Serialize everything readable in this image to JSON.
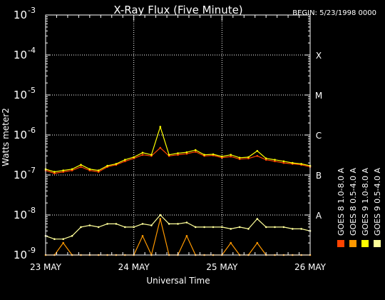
{
  "chart_data": {
    "type": "line",
    "title": "X-Ray Flux (Five Minute)",
    "begin_label": "BEGIN: 5/23/1998 0000",
    "xlabel": "Universal Time",
    "ylabel": "Watts meter2",
    "yscale": "log",
    "ylim": [
      1e-09,
      0.001
    ],
    "xlim": [
      0,
      3
    ],
    "x_unit": "days since 23 May 1998 00:00 UT",
    "x_ticks": [
      {
        "value": 0,
        "label": "23 MAY"
      },
      {
        "value": 1,
        "label": "24 MAY"
      },
      {
        "value": 2,
        "label": "25 MAY"
      },
      {
        "value": 3,
        "label": "26 MAY"
      }
    ],
    "y_ticks": [
      {
        "exp": -9,
        "base": "10",
        "sup": "-9"
      },
      {
        "exp": -8,
        "base": "10",
        "sup": "-8"
      },
      {
        "exp": -7,
        "base": "10",
        "sup": "-7"
      },
      {
        "exp": -6,
        "base": "10",
        "sup": "-6"
      },
      {
        "exp": -5,
        "base": "10",
        "sup": "-5"
      },
      {
        "exp": -4,
        "base": "10",
        "sup": "-4"
      },
      {
        "exp": -3,
        "base": "10",
        "sup": "-3"
      }
    ],
    "flare_classes": [
      {
        "label": "X",
        "exp": -4
      },
      {
        "label": "M",
        "exp": -5
      },
      {
        "label": "C",
        "exp": -6
      },
      {
        "label": "B",
        "exp": -7
      },
      {
        "label": "A",
        "exp": -8
      }
    ],
    "grid": true,
    "legend_position": "right, vertical",
    "series": [
      {
        "name": "GOES 8  1.0-8.0 A",
        "color": "#ff4400",
        "x": [
          0.0,
          0.1,
          0.2,
          0.3,
          0.4,
          0.5,
          0.6,
          0.7,
          0.8,
          0.9,
          1.0,
          1.1,
          1.2,
          1.3,
          1.4,
          1.5,
          1.6,
          1.7,
          1.8,
          1.9,
          2.0,
          2.1,
          2.2,
          2.3,
          2.4,
          2.5,
          2.6,
          2.7,
          2.8,
          2.9,
          3.0
        ],
        "values": [
          1.3e-07,
          1.1e-07,
          1.2e-07,
          1.3e-07,
          1.6e-07,
          1.3e-07,
          1.2e-07,
          1.6e-07,
          1.8e-07,
          2.2e-07,
          2.6e-07,
          3.2e-07,
          3e-07,
          4.8e-07,
          3e-07,
          3.2e-07,
          3.4e-07,
          3.8e-07,
          3e-07,
          3.1e-07,
          2.7e-07,
          2.9e-07,
          2.5e-07,
          2.6e-07,
          3e-07,
          2.4e-07,
          2.2e-07,
          2e-07,
          1.9e-07,
          1.8e-07,
          1.6e-07
        ]
      },
      {
        "name": "GOES 8  0.5-4.0 A",
        "color": "#ff9900",
        "x": [
          0.0,
          0.1,
          0.2,
          0.3,
          0.4,
          0.5,
          0.6,
          0.7,
          0.8,
          0.9,
          1.0,
          1.1,
          1.2,
          1.3,
          1.4,
          1.5,
          1.6,
          1.7,
          1.8,
          1.9,
          2.0,
          2.1,
          2.2,
          2.3,
          2.4,
          2.5,
          2.6,
          2.7,
          2.8,
          2.9,
          3.0
        ],
        "values": [
          1e-09,
          1e-09,
          2e-09,
          1e-09,
          1e-09,
          1e-09,
          1e-09,
          1e-09,
          1e-09,
          1e-09,
          1e-09,
          3e-09,
          1e-09,
          8e-09,
          1e-09,
          1e-09,
          3e-09,
          1e-09,
          1e-09,
          1e-09,
          1e-09,
          2e-09,
          1e-09,
          1e-09,
          2e-09,
          1e-09,
          1e-09,
          1e-09,
          1e-09,
          1e-09,
          1e-09
        ]
      },
      {
        "name": "GOES 9  0.5-4.0 A",
        "color": "#ffff99",
        "x": [
          0.0,
          0.1,
          0.2,
          0.3,
          0.4,
          0.5,
          0.6,
          0.7,
          0.8,
          0.9,
          1.0,
          1.1,
          1.2,
          1.3,
          1.4,
          1.5,
          1.6,
          1.7,
          1.8,
          1.9,
          2.0,
          2.1,
          2.2,
          2.3,
          2.4,
          2.5,
          2.6,
          2.7,
          2.8,
          2.9,
          3.0
        ],
        "values": [
          3e-09,
          2.5e-09,
          2.5e-09,
          3e-09,
          5e-09,
          5.5e-09,
          5e-09,
          6e-09,
          6e-09,
          5e-09,
          5e-09,
          6e-09,
          5.5e-09,
          1e-08,
          6e-09,
          6e-09,
          6.5e-09,
          5e-09,
          5e-09,
          5e-09,
          5e-09,
          4.5e-09,
          5e-09,
          4.5e-09,
          8e-09,
          5e-09,
          5e-09,
          5e-09,
          4.5e-09,
          4.5e-09,
          4e-09
        ]
      },
      {
        "name": "GOES 9  1.0-8.0 A",
        "color": "#ffff00",
        "x": [
          0.0,
          0.1,
          0.2,
          0.3,
          0.4,
          0.5,
          0.6,
          0.7,
          0.8,
          0.9,
          1.0,
          1.1,
          1.2,
          1.3,
          1.4,
          1.5,
          1.6,
          1.7,
          1.8,
          1.9,
          2.0,
          2.1,
          2.2,
          2.3,
          2.4,
          2.5,
          2.6,
          2.7,
          2.8,
          2.9,
          3.0
        ],
        "values": [
          1.4e-07,
          1.2e-07,
          1.3e-07,
          1.4e-07,
          1.8e-07,
          1.4e-07,
          1.3e-07,
          1.7e-07,
          1.9e-07,
          2.4e-07,
          2.8e-07,
          3.6e-07,
          3.2e-07,
          1.6e-06,
          3.2e-07,
          3.5e-07,
          3.7e-07,
          4.2e-07,
          3.2e-07,
          3.3e-07,
          2.9e-07,
          3.2e-07,
          2.7e-07,
          2.8e-07,
          4e-07,
          2.6e-07,
          2.4e-07,
          2.2e-07,
          2e-07,
          1.9e-07,
          1.7e-07
        ]
      }
    ]
  }
}
